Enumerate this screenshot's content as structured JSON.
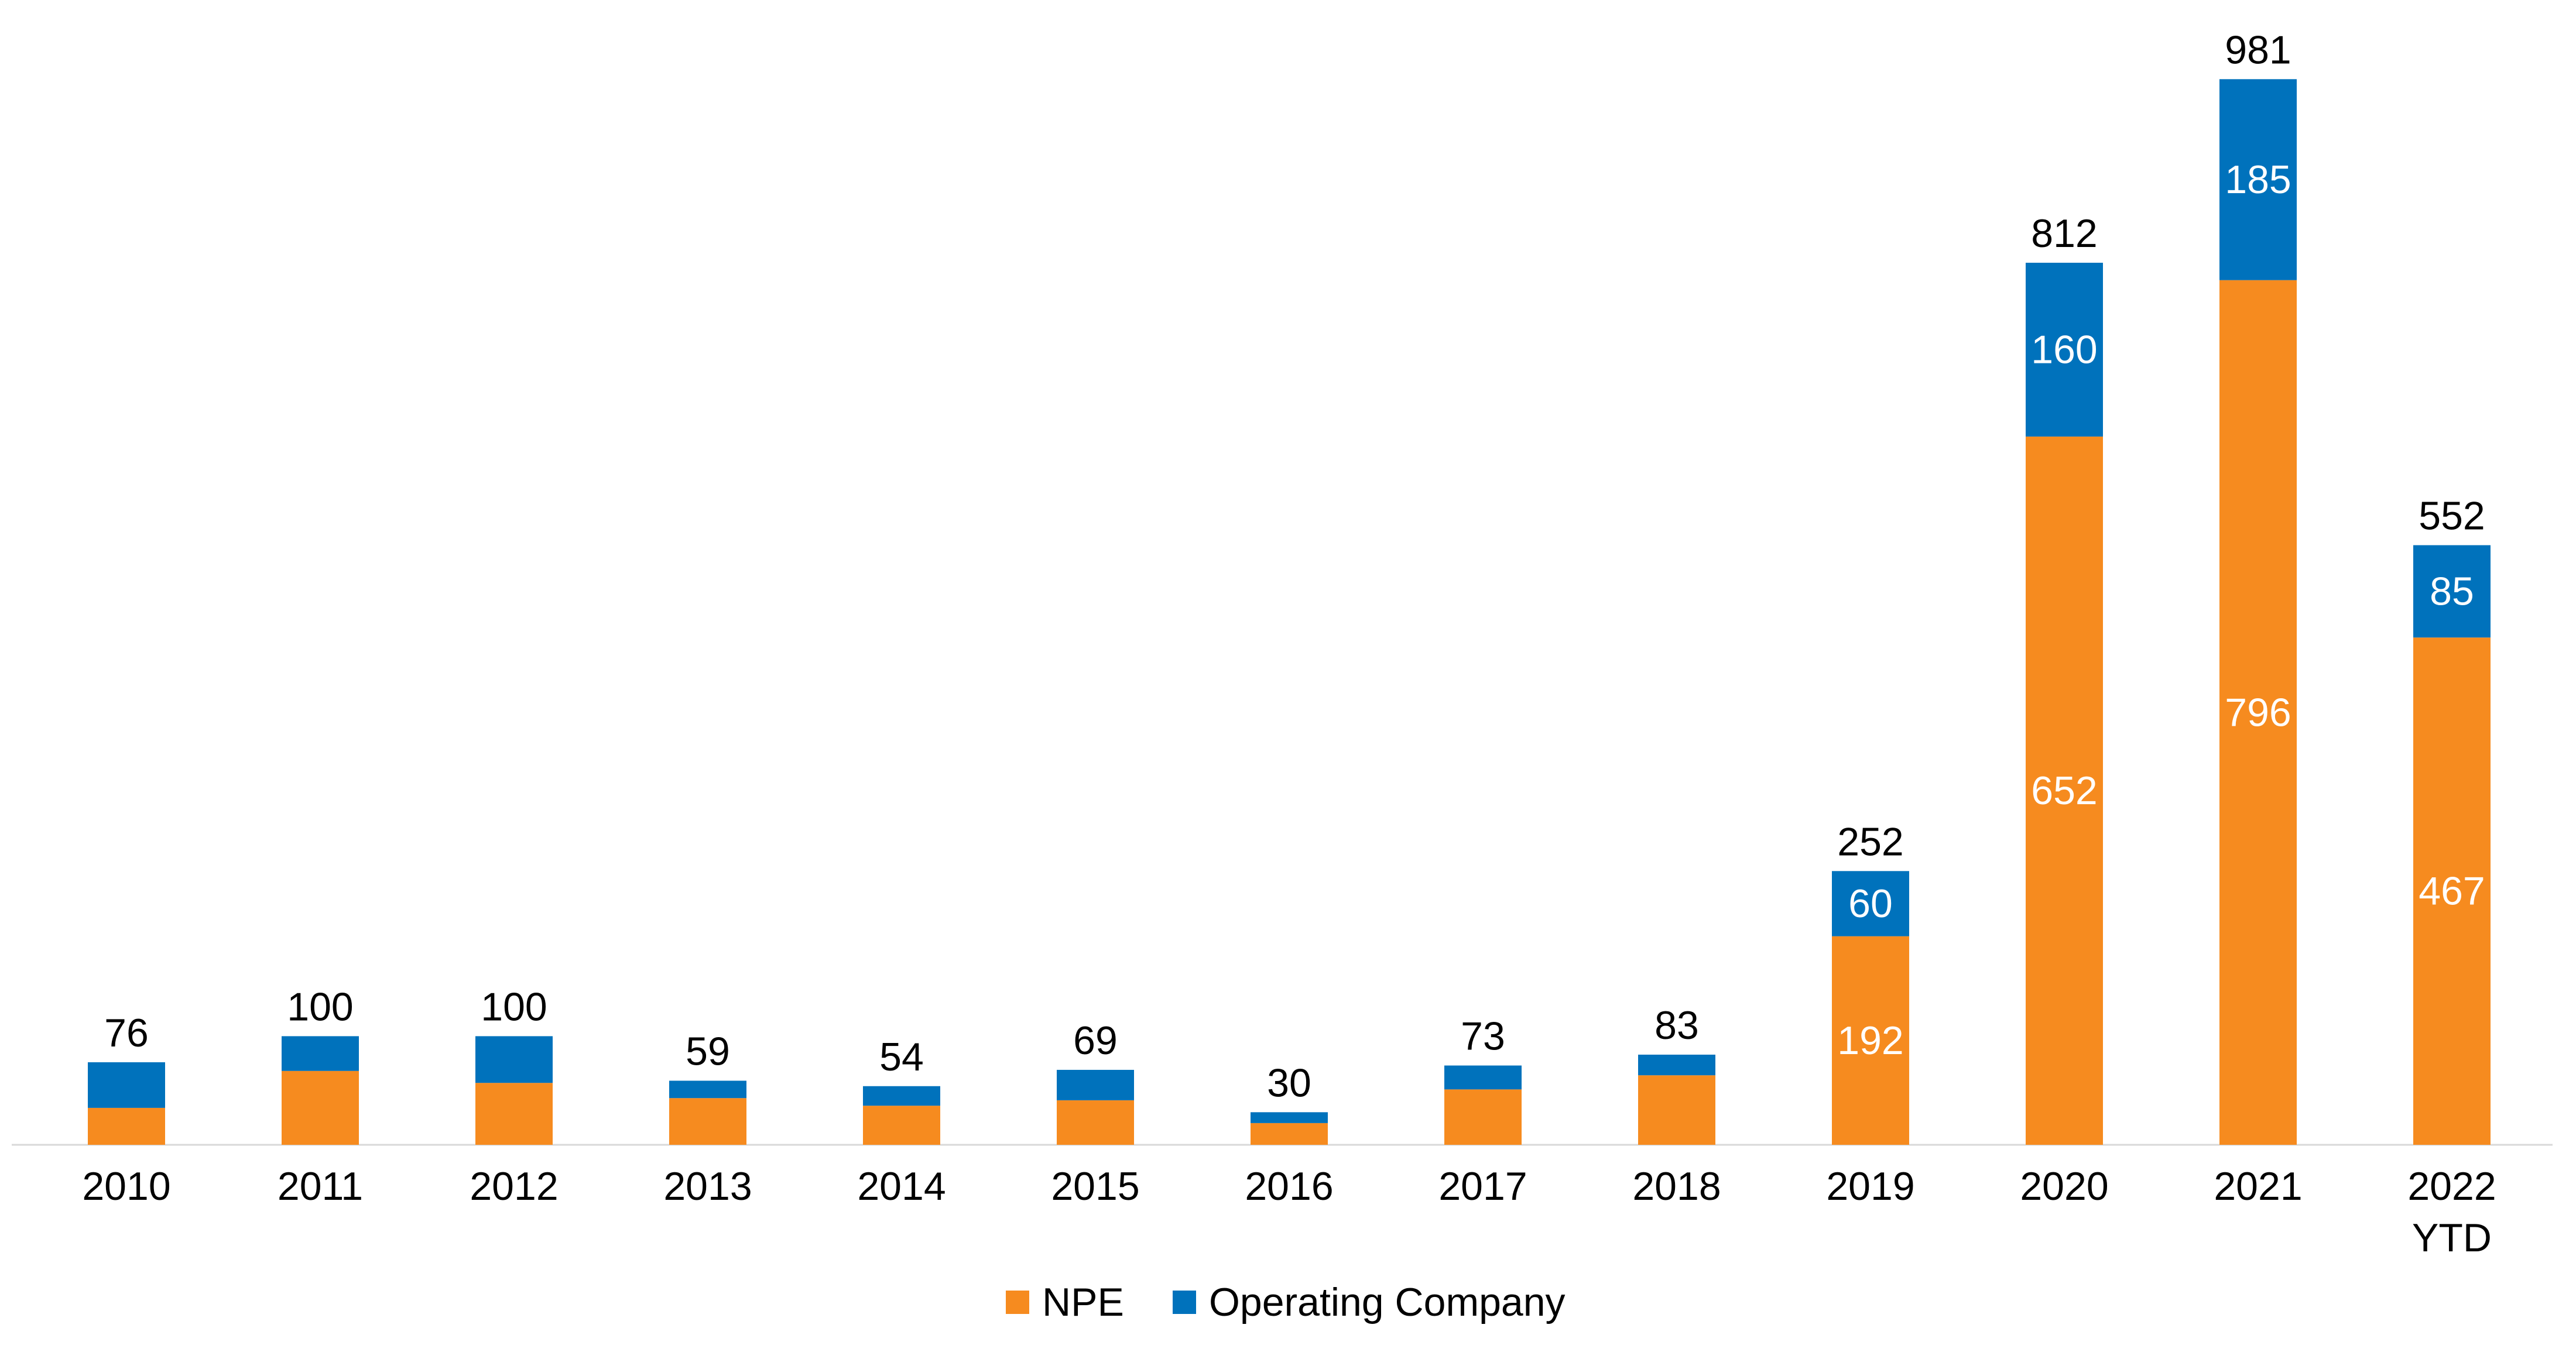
{
  "chart_data": {
    "type": "bar",
    "stacked": true,
    "title": "",
    "xlabel": "",
    "ylabel": "",
    "ylim": [
      0,
      1000
    ],
    "grid": false,
    "legend_position": "bottom-center",
    "categories": [
      "2010",
      "2011",
      "2012",
      "2013",
      "2014",
      "2015",
      "2016",
      "2017",
      "2018",
      "2019",
      "2020",
      "2021",
      "2022 YTD"
    ],
    "totals": [
      76,
      100,
      100,
      59,
      54,
      69,
      30,
      73,
      83,
      252,
      812,
      981,
      552
    ],
    "series": [
      {
        "name": "NPE",
        "color": "#F68B1F",
        "values": [
          34,
          68,
          57,
          43,
          36,
          41,
          20,
          51,
          64,
          192,
          652,
          796,
          467
        ],
        "labels_shown": [
          false,
          false,
          false,
          false,
          false,
          false,
          false,
          false,
          false,
          true,
          true,
          true,
          true
        ]
      },
      {
        "name": "Operating Company",
        "color": "#0072BC",
        "values": [
          42,
          32,
          43,
          16,
          18,
          28,
          10,
          22,
          19,
          60,
          160,
          185,
          85
        ],
        "labels_shown": [
          false,
          false,
          false,
          false,
          false,
          false,
          false,
          false,
          false,
          true,
          true,
          true,
          true
        ]
      }
    ]
  },
  "legend": {
    "items": [
      {
        "label": "NPE",
        "color": "#F68B1F"
      },
      {
        "label": "Operating Company",
        "color": "#0072BC"
      }
    ]
  }
}
